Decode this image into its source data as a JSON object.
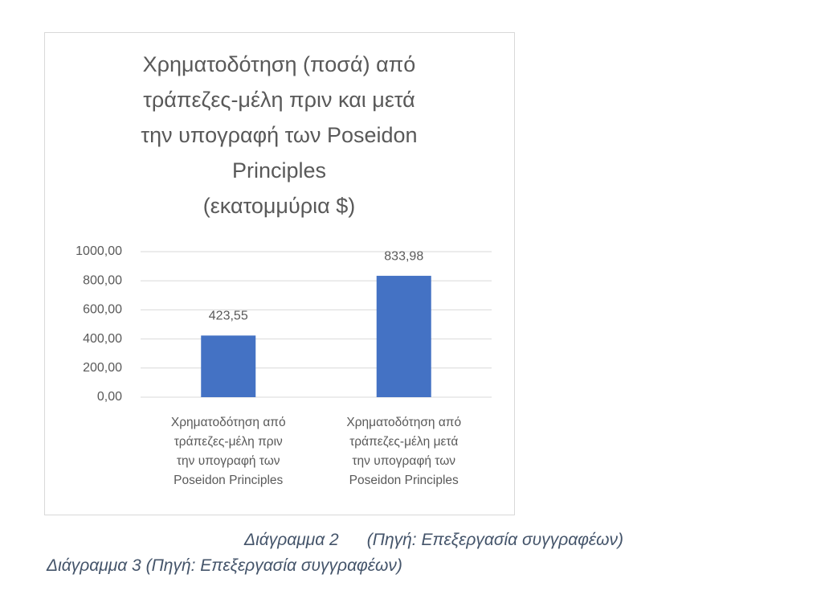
{
  "chart_data": {
    "type": "bar",
    "title": "Χρηματοδότηση (ποσά) από\nτράπεζες-μέλη πριν και μετά\nτην υπογραφή των Poseidon\nPrinciples\n(εκατομμύρια $)",
    "categories": [
      "Χρηματοδότηση από\nτράπεζες-μέλη πριν\nτην υπογραφή των\nPoseidon Principles",
      "Χρηματοδότηση από\nτράπεζες-μέλη μετά\nτην υπογραφή των\nPoseidon Principles"
    ],
    "values": [
      423.55,
      833.98
    ],
    "value_labels": [
      "423,55",
      "833,98"
    ],
    "color": "#4472c4",
    "ylim": [
      0,
      1000
    ],
    "yticks": [
      {
        "value": 0,
        "label": "0,00"
      },
      {
        "value": 200,
        "label": "200,00"
      },
      {
        "value": 400,
        "label": "400,00"
      },
      {
        "value": 600,
        "label": "600,00"
      },
      {
        "value": 800,
        "label": "800,00"
      },
      {
        "value": 1000,
        "label": "1000,00"
      }
    ],
    "grid": true
  },
  "captions": [
    "Διάγραμμα 2      (Πηγή: Επεξεργασία συγγραφέων)",
    "Διάγραμμα 3 (Πηγή: Επεξεργασία συγγραφέων)"
  ]
}
